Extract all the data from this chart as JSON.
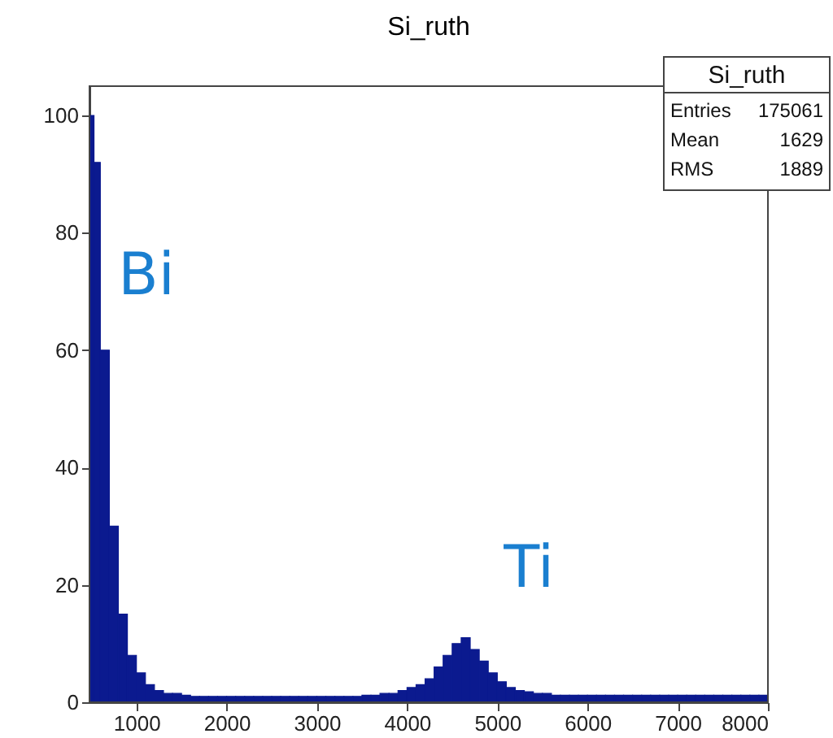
{
  "chart_data": {
    "type": "histogram",
    "title": "Si_ruth",
    "bins": [
      480,
      530,
      600,
      700,
      800,
      900,
      1000,
      1100,
      1200,
      1300,
      1400,
      1500,
      1600,
      1700,
      1800,
      1900,
      2000,
      2100,
      2200,
      2300,
      2400,
      2500,
      2600,
      2700,
      2800,
      2900,
      3000,
      3100,
      3200,
      3300,
      3400,
      3500,
      3600,
      3700,
      3800,
      3900,
      4000,
      4100,
      4200,
      4300,
      4400,
      4500,
      4600,
      4700,
      4800,
      4900,
      5000,
      5100,
      5200,
      5300,
      5400,
      5500,
      5600,
      5700,
      5800,
      5900,
      6000,
      6100,
      6200,
      6300,
      6400,
      6500,
      6600,
      6700,
      6800,
      6900,
      7000,
      7100,
      7200,
      7300,
      7400,
      7500,
      7600,
      7700,
      7800,
      7900,
      8000
    ],
    "values": [
      100,
      92,
      60,
      30,
      15,
      8,
      5,
      3,
      2,
      1.5,
      1.5,
      1.2,
      1,
      1,
      1,
      1,
      1,
      1,
      1,
      1,
      1,
      1,
      1,
      1,
      1,
      1,
      1,
      1,
      1,
      1,
      1,
      1.2,
      1.2,
      1.5,
      1.5,
      2,
      2.5,
      3,
      4,
      6,
      8,
      10,
      11,
      9,
      7,
      5,
      3.5,
      2.5,
      2,
      1.8,
      1.5,
      1.5,
      1.2,
      1.2,
      1.2,
      1.2,
      1.2,
      1.2,
      1.2,
      1.2,
      1.2,
      1.2,
      1.2,
      1.2,
      1.2,
      1.2,
      1.2,
      1.2,
      1.2,
      1.2,
      1.2,
      1.2,
      1.2,
      1.2,
      1.2,
      1.2
    ],
    "color": "#0b1a8f",
    "xlim": [
      480,
      8000
    ],
    "xticks": [
      1000,
      2000,
      3000,
      4000,
      5000,
      6000,
      7000,
      8000
    ],
    "ylim": [
      0,
      105
    ],
    "yticks": [
      0,
      20,
      40,
      60,
      80,
      100
    ],
    "grid": false,
    "annotations": [
      "Bi",
      "Ti",
      "Si_ruth",
      "Entries 175061",
      "Mean 1629",
      "RMS 1889"
    ]
  }
}
